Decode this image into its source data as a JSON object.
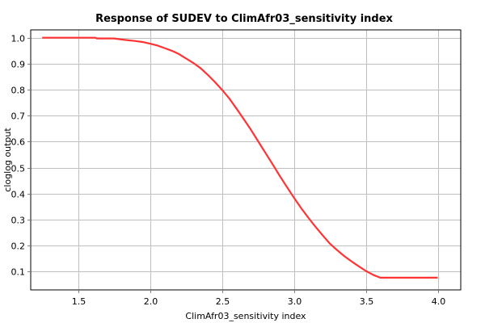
{
  "chart_data": {
    "type": "line",
    "title": "Response of SUDEV to ClimAfr03_sensitivity index",
    "xlabel": "ClimAfr03_sensitivity index",
    "ylabel": "cloglog output",
    "xlim": [
      1.17,
      4.16
    ],
    "ylim": [
      0.03,
      1.03
    ],
    "xticks": [
      1.5,
      2.0,
      2.5,
      3.0,
      3.5,
      4.0
    ],
    "xtick_labels": [
      "1.5",
      "2.0",
      "2.5",
      "3.0",
      "3.5",
      "4.0"
    ],
    "yticks": [
      0.1,
      0.2,
      0.3,
      0.4,
      0.5,
      0.6,
      0.7,
      0.8,
      0.9,
      1.0
    ],
    "ytick_labels": [
      "0.1",
      "0.2",
      "0.3",
      "0.4",
      "0.5",
      "0.6",
      "0.7",
      "0.8",
      "0.9",
      "1.0"
    ],
    "grid": true,
    "line_color": "#ff3333",
    "series": [
      {
        "x": [
          1.25,
          1.45,
          1.62,
          1.63,
          1.75,
          1.8,
          1.85,
          1.9,
          1.95,
          2.0,
          2.05,
          2.1,
          2.15,
          2.2,
          2.25,
          2.3,
          2.35,
          2.4,
          2.45,
          2.5,
          2.55,
          2.6,
          2.65,
          2.7,
          2.75,
          2.8,
          2.85,
          2.9,
          2.95,
          3.0,
          3.05,
          3.1,
          3.15,
          3.2,
          3.25,
          3.3,
          3.35,
          3.4,
          3.45,
          3.5,
          3.55,
          3.6,
          3.65,
          3.7,
          3.75,
          3.78,
          3.85,
          3.9,
          3.95,
          4.0
        ],
        "y": [
          1.0,
          1.0,
          1.0,
          0.997,
          0.997,
          0.993,
          0.99,
          0.987,
          0.983,
          0.977,
          0.97,
          0.96,
          0.95,
          0.937,
          0.92,
          0.903,
          0.883,
          0.858,
          0.83,
          0.8,
          0.767,
          0.728,
          0.688,
          0.647,
          0.603,
          0.559,
          0.515,
          0.47,
          0.427,
          0.385,
          0.345,
          0.308,
          0.273,
          0.24,
          0.208,
          0.183,
          0.16,
          0.14,
          0.121,
          0.103,
          0.088,
          0.077,
          0.077,
          0.077,
          0.077,
          0.077,
          0.077,
          0.077,
          0.077,
          0.077
        ]
      }
    ]
  }
}
